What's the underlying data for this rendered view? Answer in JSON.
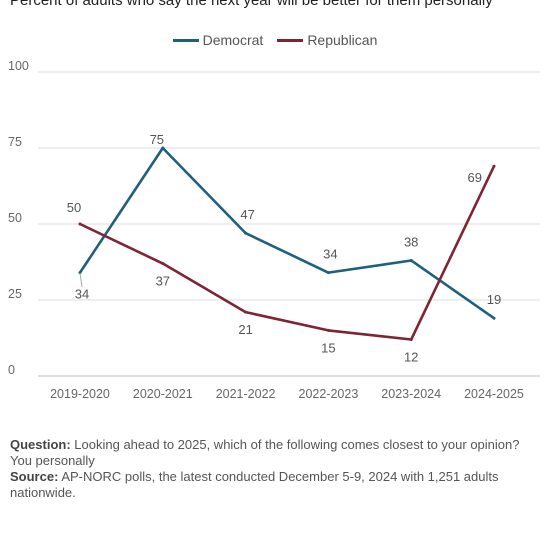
{
  "chart_data": {
    "type": "line",
    "subtitle": "Percent of adults who say the next year will be better for them personally",
    "categories": [
      "2019-2020",
      "2020-2021",
      "2021-2022",
      "2022-2023",
      "2023-2024",
      "2024-2025"
    ],
    "series": [
      {
        "name": "Democrat",
        "color": "#1f5f7f",
        "values": [
          34,
          75,
          47,
          34,
          38,
          19
        ]
      },
      {
        "name": "Republican",
        "color": "#7f2434",
        "values": [
          50,
          37,
          21,
          15,
          12,
          69
        ]
      }
    ],
    "ylim": [
      0,
      100
    ],
    "yticks": [
      0,
      25,
      50,
      75,
      100
    ],
    "grid": true,
    "legend": "top-center"
  },
  "notes": {
    "question_label": "Question:",
    "question_text": "Looking ahead to 2025, which of the following comes closest to your opinion? You personally",
    "source_label": "Source:",
    "source_text": "AP-NORC polls, the latest conducted December 5-9, 2024 with 1,251 adults nationwide."
  }
}
